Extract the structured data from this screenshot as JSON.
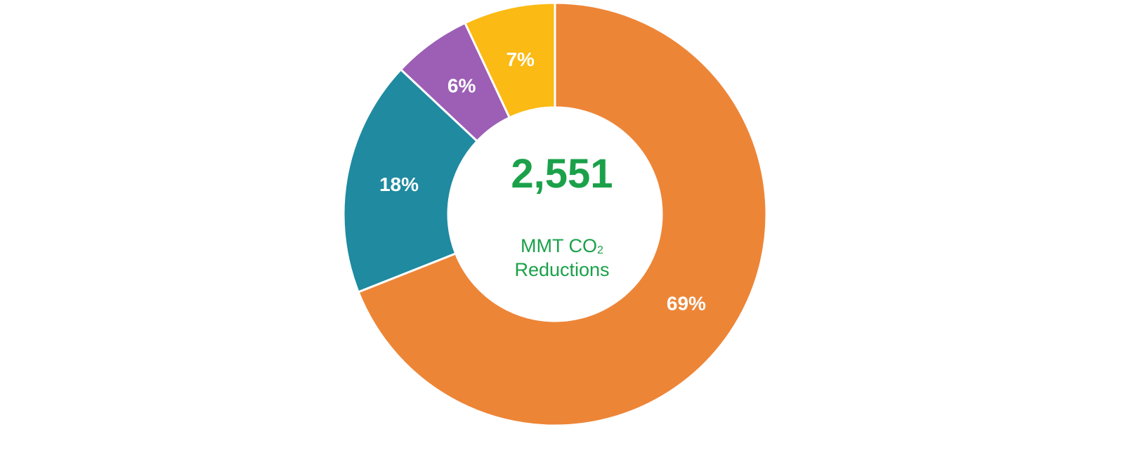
{
  "chart_data": {
    "type": "pie",
    "variant": "donut",
    "center": {
      "value": "2,551",
      "unit_prefix": "MMT CO",
      "unit_subscript": "2",
      "label": "Reductions"
    },
    "slices": [
      {
        "value": 69,
        "label": "69%",
        "color": "#ed8537"
      },
      {
        "value": 18,
        "label": "18%",
        "color": "#1f8aa0"
      },
      {
        "value": 6,
        "label": "6%",
        "color": "#9c5fb5"
      },
      {
        "value": 7,
        "label": "7%",
        "color": "#fbba14"
      }
    ],
    "legend": "none"
  }
}
